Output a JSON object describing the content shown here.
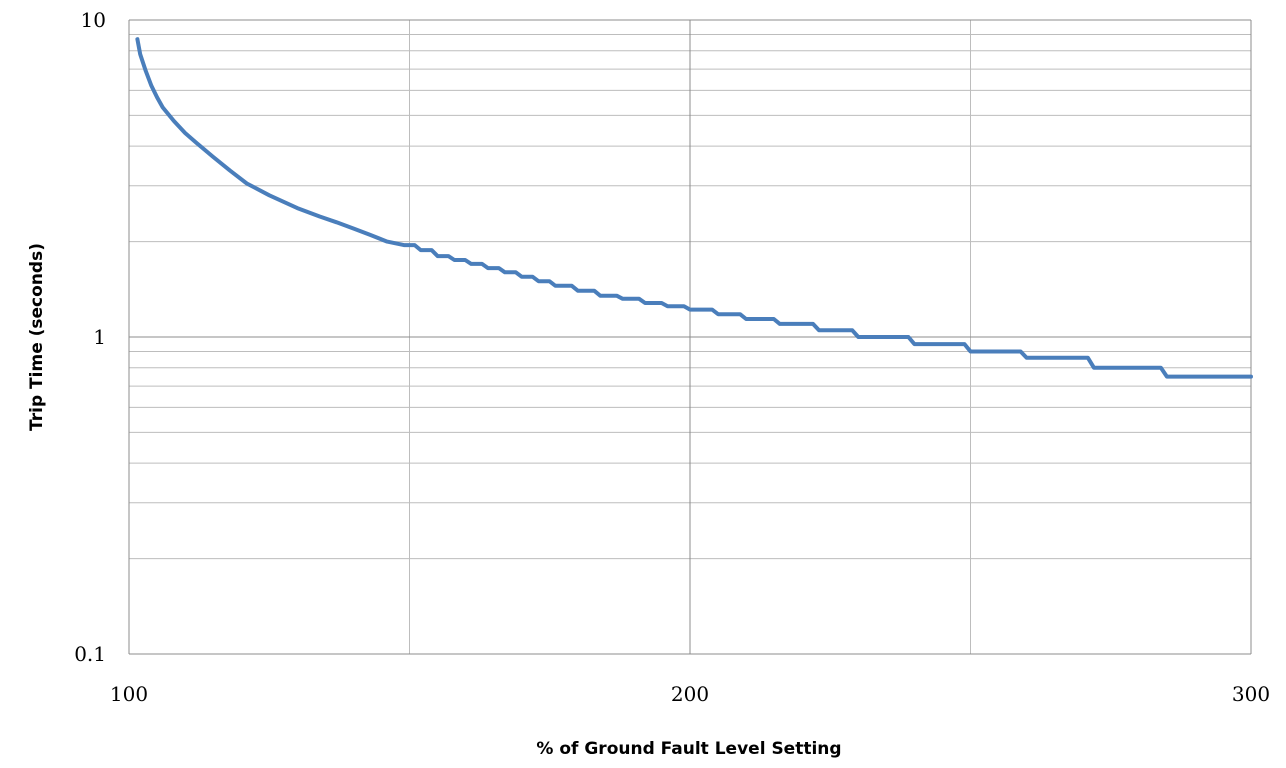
{
  "chart_data": {
    "type": "line",
    "title": "",
    "xlabel": "% of Ground Fault Level Setting",
    "ylabel": "Trip Time (seconds)",
    "xlim": [
      100,
      300
    ],
    "ylim": [
      0.1,
      10
    ],
    "y_scale": "log",
    "grid": true,
    "x_ticks": [
      100,
      200,
      300
    ],
    "x_tick_labels": [
      "100",
      "200",
      "300"
    ],
    "y_ticks": [
      0.1,
      1,
      10
    ],
    "y_tick_labels": [
      "0.1",
      "1",
      "10"
    ],
    "series": [
      {
        "color": "#4a7ebb",
        "x": [
          101.5,
          102,
          103,
          104,
          105,
          106,
          108,
          110,
          112,
          115,
          118,
          121,
          125,
          130,
          134,
          137,
          140,
          143,
          146,
          149,
          152,
          155,
          158,
          161,
          164,
          167,
          170,
          173,
          176,
          180,
          184,
          188,
          192,
          196,
          200,
          205,
          210,
          216,
          223,
          230,
          240,
          250,
          260,
          272,
          285,
          300
        ],
        "y": [
          8.7,
          7.8,
          6.9,
          6.2,
          5.7,
          5.3,
          4.8,
          4.4,
          4.1,
          3.7,
          3.35,
          3.05,
          2.8,
          2.55,
          2.4,
          2.3,
          2.2,
          2.1,
          2.0,
          1.95,
          1.88,
          1.8,
          1.75,
          1.7,
          1.65,
          1.6,
          1.55,
          1.5,
          1.45,
          1.4,
          1.35,
          1.32,
          1.28,
          1.25,
          1.22,
          1.18,
          1.14,
          1.1,
          1.05,
          1.0,
          0.95,
          0.9,
          0.86,
          0.8,
          0.75,
          0.75
        ]
      }
    ]
  }
}
